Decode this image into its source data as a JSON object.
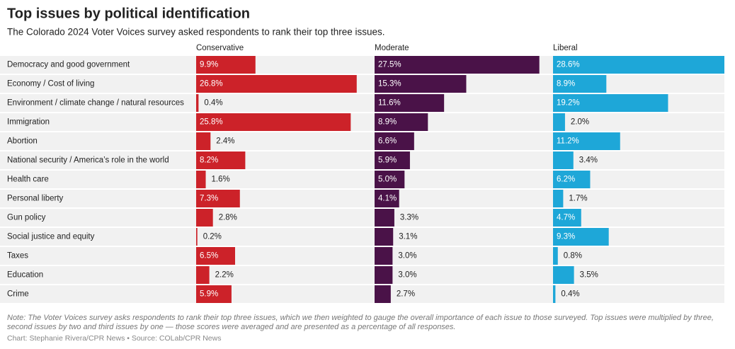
{
  "chart_data": {
    "type": "bar",
    "title": "Top issues by political identification",
    "subtitle": "The Colorado 2024 Voter Voices survey asked respondents to rank their top three issues.",
    "categories": [
      "Democracy and good government",
      "Economy / Cost of living",
      "Environment / climate change / natural resources",
      "Immigration",
      "Abortion",
      "National security / America’s role in the world",
      "Health care",
      "Personal liberty",
      "Gun policy",
      "Social justice and equity",
      "Taxes",
      "Education",
      "Crime"
    ],
    "series": [
      {
        "name": "Conservative",
        "color": "#cc2229",
        "values": [
          9.9,
          26.8,
          0.4,
          25.8,
          2.4,
          8.2,
          1.6,
          7.3,
          2.8,
          0.2,
          6.5,
          2.2,
          5.9
        ],
        "value_labels": [
          "9.9%",
          "26.8%",
          "0.4%",
          "25.8%",
          "2.4%",
          "8.2%",
          "1.6%",
          "7.3%",
          "2.8%",
          "0.2%",
          "6.5%",
          "2.2%",
          "5.9%"
        ]
      },
      {
        "name": "Moderate",
        "color": "#4a1248",
        "values": [
          27.5,
          15.3,
          11.6,
          8.9,
          6.6,
          5.9,
          5.0,
          4.1,
          3.3,
          3.1,
          3.0,
          3.0,
          2.7
        ],
        "value_labels": [
          "27.5%",
          "15.3%",
          "11.6%",
          "8.9%",
          "6.6%",
          "5.9%",
          "5.0%",
          "4.1%",
          "3.3%",
          "3.1%",
          "3.0%",
          "3.0%",
          "2.7%"
        ]
      },
      {
        "name": "Liberal",
        "color": "#1ea7d8",
        "values": [
          28.6,
          8.9,
          19.2,
          2.0,
          11.2,
          3.4,
          6.2,
          1.7,
          4.7,
          9.3,
          0.8,
          3.5,
          0.4
        ],
        "value_labels": [
          "28.6%",
          "8.9%",
          "19.2%",
          "2.0%",
          "11.2%",
          "3.4%",
          "6.2%",
          "1.7%",
          "4.7%",
          "9.3%",
          "0.8%",
          "3.5%",
          "0.4%"
        ]
      }
    ],
    "xlim": [
      0,
      28.6
    ],
    "note": "Note: The Voter Voices survey asks respondents to rank their top three issues, which we then weighted to gauge the overall importance of each issue to those surveyed. Top issues were multiplied by three, second issues by two and third issues by one — those scores were averaged and are presented as a percentage of all responses.",
    "credit": "Chart: Stephanie Rivera/CPR News • Source: COLab/CPR News"
  }
}
